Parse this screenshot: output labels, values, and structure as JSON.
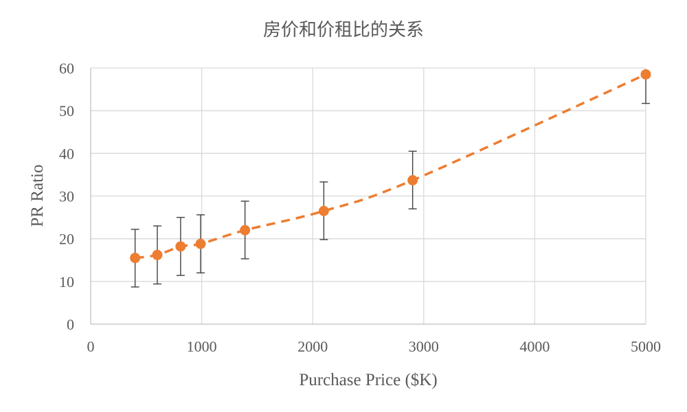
{
  "chart_data": {
    "type": "scatter",
    "title": "房价和价租比的关系",
    "xlabel": "Purchase Price ($K)",
    "ylabel": "PR Ratio",
    "xlim": [
      0,
      5000
    ],
    "ylim": [
      0,
      60
    ],
    "xticks": [
      0,
      1000,
      2000,
      3000,
      4000,
      5000
    ],
    "yticks": [
      0,
      10,
      20,
      30,
      40,
      50,
      60
    ],
    "grid": true,
    "legend": "none",
    "marker_color": "#ED7D31",
    "errorbar_color": "#404040",
    "trendline": {
      "style": "dashed",
      "color": "#ED7D31"
    },
    "series": [
      {
        "x": [
          400,
          600,
          810,
          990,
          1390,
          2100,
          2900,
          5000
        ],
        "y": [
          15.5,
          16.2,
          18.2,
          18.8,
          22.0,
          26.5,
          33.7,
          58.5
        ],
        "error_low": [
          8.7,
          9.4,
          11.4,
          12.0,
          15.3,
          19.8,
          27.0,
          51.7
        ],
        "error_high": [
          22.2,
          23.0,
          25.0,
          25.6,
          28.8,
          33.3,
          40.5,
          58.5
        ]
      }
    ]
  }
}
